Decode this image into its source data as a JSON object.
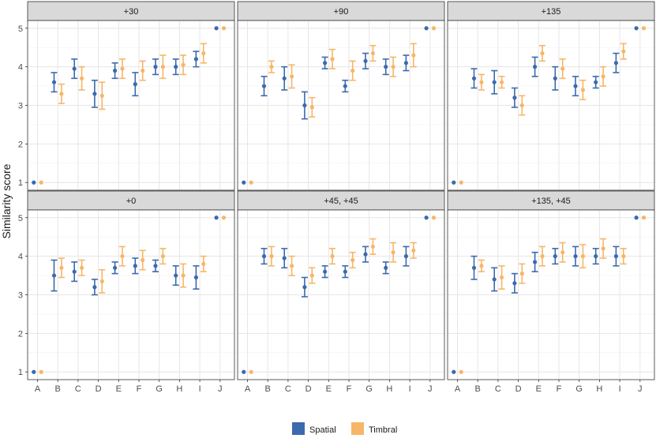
{
  "figure": {
    "ylabel": "Similarity score",
    "y_ticks": [
      "1",
      "2",
      "3",
      "4",
      "5"
    ],
    "x_ticks": [
      "A",
      "B",
      "C",
      "D",
      "E",
      "F",
      "G",
      "H",
      "I",
      "J"
    ]
  },
  "legend": {
    "items": [
      {
        "label": "Spatial",
        "color": "#3b6aae"
      },
      {
        "label": "Timbral",
        "color": "#f7b667"
      }
    ]
  },
  "chart_data": [
    {
      "type": "scatter",
      "title": "+30",
      "categories": [
        "A",
        "B",
        "C",
        "D",
        "E",
        "F",
        "G",
        "H",
        "I",
        "J"
      ],
      "ylim": [
        0.8,
        5.2
      ],
      "series": [
        {
          "name": "Spatial",
          "values": [
            1.0,
            3.6,
            3.95,
            3.3,
            3.9,
            3.55,
            4.0,
            4.0,
            4.2,
            5.0
          ],
          "err_low": [
            1.0,
            3.35,
            3.7,
            2.95,
            3.7,
            3.25,
            3.8,
            3.8,
            4.0,
            5.0
          ],
          "err_high": [
            1.0,
            3.85,
            4.2,
            3.65,
            4.1,
            3.85,
            4.2,
            4.2,
            4.4,
            5.0
          ]
        },
        {
          "name": "Timbral",
          "values": [
            1.0,
            3.3,
            3.7,
            3.25,
            3.95,
            3.9,
            4.0,
            4.05,
            4.35,
            5.0
          ],
          "err_low": [
            1.0,
            3.05,
            3.4,
            2.9,
            3.7,
            3.65,
            3.7,
            3.8,
            4.1,
            5.0
          ],
          "err_high": [
            1.0,
            3.55,
            4.0,
            3.6,
            4.2,
            4.15,
            4.3,
            4.3,
            4.6,
            5.0
          ]
        }
      ]
    },
    {
      "type": "scatter",
      "title": "+90",
      "categories": [
        "A",
        "B",
        "C",
        "D",
        "E",
        "F",
        "G",
        "H",
        "I",
        "J"
      ],
      "ylim": [
        0.8,
        5.2
      ],
      "series": [
        {
          "name": "Spatial",
          "values": [
            1.0,
            3.5,
            3.7,
            3.0,
            4.1,
            3.5,
            4.15,
            4.0,
            4.1,
            5.0
          ],
          "err_low": [
            1.0,
            3.25,
            3.4,
            2.65,
            3.95,
            3.35,
            3.95,
            3.8,
            3.9,
            5.0
          ],
          "err_high": [
            1.0,
            3.75,
            4.0,
            3.35,
            4.25,
            3.65,
            4.35,
            4.2,
            4.3,
            5.0
          ]
        },
        {
          "name": "Timbral",
          "values": [
            1.0,
            4.0,
            3.75,
            2.95,
            4.2,
            3.9,
            4.35,
            4.0,
            4.3,
            5.0
          ],
          "err_low": [
            1.0,
            3.85,
            3.45,
            2.7,
            3.95,
            3.65,
            4.15,
            3.75,
            4.0,
            5.0
          ],
          "err_high": [
            1.0,
            4.15,
            4.05,
            3.2,
            4.45,
            4.15,
            4.55,
            4.25,
            4.6,
            5.0
          ]
        }
      ]
    },
    {
      "type": "scatter",
      "title": "+135",
      "categories": [
        "A",
        "B",
        "C",
        "D",
        "E",
        "F",
        "G",
        "H",
        "I",
        "J"
      ],
      "ylim": [
        0.8,
        5.2
      ],
      "series": [
        {
          "name": "Spatial",
          "values": [
            1.0,
            3.7,
            3.6,
            3.2,
            4.0,
            3.7,
            3.5,
            3.6,
            4.1,
            5.0
          ],
          "err_low": [
            1.0,
            3.45,
            3.3,
            2.95,
            3.75,
            3.4,
            3.25,
            3.45,
            3.85,
            5.0
          ],
          "err_high": [
            1.0,
            3.95,
            3.9,
            3.45,
            4.25,
            4.0,
            3.75,
            3.75,
            4.35,
            5.0
          ]
        },
        {
          "name": "Timbral",
          "values": [
            1.0,
            3.6,
            3.6,
            3.0,
            4.35,
            3.95,
            3.4,
            3.75,
            4.4,
            5.0
          ],
          "err_low": [
            1.0,
            3.4,
            3.45,
            2.75,
            4.15,
            3.7,
            3.15,
            3.5,
            4.2,
            5.0
          ],
          "err_high": [
            1.0,
            3.8,
            3.75,
            3.25,
            4.55,
            4.2,
            3.65,
            4.0,
            4.6,
            5.0
          ]
        }
      ]
    },
    {
      "type": "scatter",
      "title": "+0",
      "categories": [
        "A",
        "B",
        "C",
        "D",
        "E",
        "F",
        "G",
        "H",
        "I",
        "J"
      ],
      "ylim": [
        0.8,
        5.2
      ],
      "series": [
        {
          "name": "Spatial",
          "values": [
            1.0,
            3.5,
            3.6,
            3.2,
            3.7,
            3.75,
            3.75,
            3.5,
            3.45,
            5.0
          ],
          "err_low": [
            1.0,
            3.1,
            3.35,
            3.0,
            3.55,
            3.55,
            3.6,
            3.25,
            3.15,
            5.0
          ],
          "err_high": [
            1.0,
            3.9,
            3.85,
            3.4,
            3.85,
            3.95,
            3.9,
            3.75,
            3.75,
            5.0
          ]
        },
        {
          "name": "Timbral",
          "values": [
            1.0,
            3.7,
            3.7,
            3.35,
            4.0,
            3.9,
            4.0,
            3.5,
            3.8,
            5.0
          ],
          "err_low": [
            1.0,
            3.45,
            3.5,
            3.05,
            3.75,
            3.65,
            3.8,
            3.2,
            3.6,
            5.0
          ],
          "err_high": [
            1.0,
            3.95,
            3.9,
            3.65,
            4.25,
            4.15,
            4.2,
            3.8,
            4.0,
            5.0
          ]
        }
      ]
    },
    {
      "type": "scatter",
      "title": "+45, +45",
      "categories": [
        "A",
        "B",
        "C",
        "D",
        "E",
        "F",
        "G",
        "H",
        "I",
        "J"
      ],
      "ylim": [
        0.8,
        5.2
      ],
      "series": [
        {
          "name": "Spatial",
          "values": [
            1.0,
            4.0,
            3.95,
            3.2,
            3.6,
            3.6,
            4.05,
            3.7,
            4.0,
            5.0
          ],
          "err_low": [
            1.0,
            3.8,
            3.7,
            2.95,
            3.45,
            3.45,
            3.85,
            3.55,
            3.75,
            5.0
          ],
          "err_high": [
            1.0,
            4.2,
            4.2,
            3.45,
            3.75,
            3.75,
            4.25,
            3.85,
            4.25,
            5.0
          ]
        },
        {
          "name": "Timbral",
          "values": [
            1.0,
            4.0,
            3.75,
            3.5,
            4.0,
            3.9,
            4.25,
            4.1,
            4.15,
            5.0
          ],
          "err_low": [
            1.0,
            3.75,
            3.5,
            3.3,
            3.8,
            3.7,
            4.05,
            3.85,
            3.95,
            5.0
          ],
          "err_high": [
            1.0,
            4.25,
            4.0,
            3.7,
            4.2,
            4.1,
            4.45,
            4.35,
            4.35,
            5.0
          ]
        }
      ]
    },
    {
      "type": "scatter",
      "title": "+135, +45",
      "categories": [
        "A",
        "B",
        "C",
        "D",
        "E",
        "F",
        "G",
        "H",
        "I",
        "J"
      ],
      "ylim": [
        0.8,
        5.2
      ],
      "series": [
        {
          "name": "Spatial",
          "values": [
            1.0,
            3.7,
            3.4,
            3.3,
            3.85,
            4.0,
            4.0,
            4.0,
            4.0,
            5.0
          ],
          "err_low": [
            1.0,
            3.4,
            3.1,
            3.05,
            3.6,
            3.8,
            3.75,
            3.8,
            3.75,
            5.0
          ],
          "err_high": [
            1.0,
            4.0,
            3.7,
            3.55,
            4.1,
            4.2,
            4.25,
            4.2,
            4.25,
            5.0
          ]
        },
        {
          "name": "Timbral",
          "values": [
            1.0,
            3.75,
            3.45,
            3.55,
            4.0,
            4.1,
            4.0,
            4.2,
            4.0,
            5.0
          ],
          "err_low": [
            1.0,
            3.6,
            3.15,
            3.3,
            3.75,
            3.85,
            3.7,
            3.95,
            3.8,
            5.0
          ],
          "err_high": [
            1.0,
            3.9,
            3.75,
            3.8,
            4.25,
            4.35,
            4.3,
            4.45,
            4.2,
            5.0
          ]
        }
      ]
    }
  ]
}
